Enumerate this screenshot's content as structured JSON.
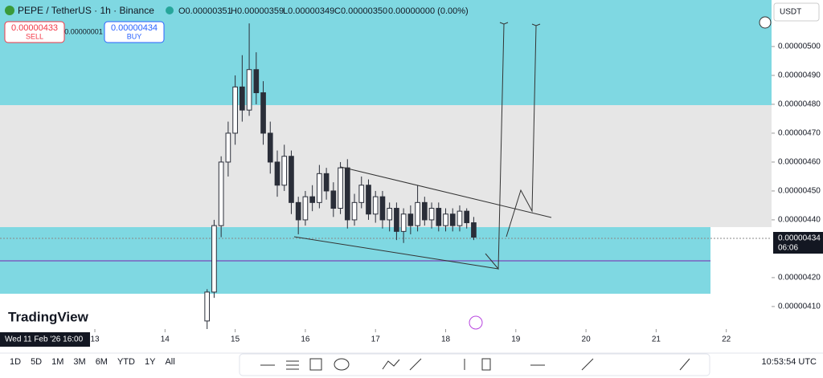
{
  "header": {
    "symbol": "PEPE / TetherUS · 1h · Binance",
    "open": "O0.00000351",
    "high": "H0.00000359",
    "low": "L0.00000349",
    "close": "C0.00000350",
    "change": "0.00000000 (0.00%)"
  },
  "trade": {
    "sell_price": "0.00000433",
    "sell_label": "SELL",
    "spread": "0.00000001",
    "buy_price": "0.00000434",
    "buy_label": "BUY"
  },
  "currency": "USDT",
  "logo": "TradingView",
  "timeframes": [
    "1D",
    "5D",
    "1M",
    "3M",
    "6M",
    "YTD",
    "1Y",
    "All"
  ],
  "clock": "10:53:54 UTC",
  "chart_data": {
    "type": "candlestick",
    "x": [
      14.6,
      14.7,
      14.8,
      14.9,
      15.0,
      15.1,
      15.2,
      15.3,
      15.4,
      15.5,
      15.6,
      15.7,
      15.8,
      15.9,
      16.0,
      16.1,
      16.2,
      16.3,
      16.4,
      16.5,
      16.6,
      16.7,
      16.8,
      16.9,
      17.0,
      17.1,
      17.2,
      17.3,
      17.4,
      17.5,
      17.6,
      17.7,
      17.8,
      17.9,
      18.0,
      18.1,
      18.2,
      18.3,
      18.4
    ],
    "open": [
      4.05e-06,
      4.15e-06,
      4.38e-06,
      4.6e-06,
      4.7e-06,
      4.86e-06,
      4.78e-06,
      4.92e-06,
      4.84e-06,
      4.7e-06,
      4.6e-06,
      4.52e-06,
      4.62e-06,
      4.46e-06,
      4.4e-06,
      4.48e-06,
      4.46e-06,
      4.56e-06,
      4.5e-06,
      4.44e-06,
      4.58e-06,
      4.4e-06,
      4.46e-06,
      4.52e-06,
      4.42e-06,
      4.48e-06,
      4.4e-06,
      4.44e-06,
      4.36e-06,
      4.42e-06,
      4.38e-06,
      4.46e-06,
      4.4e-06,
      4.44e-06,
      4.38e-06,
      4.42e-06,
      4.38e-06,
      4.43e-06,
      4.39e-06
    ],
    "high": [
      4.16e-06,
      4.4e-06,
      4.62e-06,
      4.74e-06,
      4.9e-06,
      4.97e-06,
      5.08e-06,
      4.98e-06,
      4.88e-06,
      4.74e-06,
      4.64e-06,
      4.66e-06,
      4.64e-06,
      4.48e-06,
      4.5e-06,
      4.52e-06,
      4.59e-06,
      4.58e-06,
      4.53e-06,
      4.6e-06,
      4.61e-06,
      4.49e-06,
      4.55e-06,
      4.54e-06,
      4.5e-06,
      4.5e-06,
      4.46e-06,
      4.46e-06,
      4.44e-06,
      4.45e-06,
      4.52e-06,
      4.48e-06,
      4.46e-06,
      4.46e-06,
      4.44e-06,
      4.44e-06,
      4.45e-06,
      4.44e-06,
      4.41e-06
    ],
    "low": [
      4.02e-06,
      4.13e-06,
      4.34e-06,
      4.55e-06,
      4.66e-06,
      4.74e-06,
      4.76e-06,
      4.8e-06,
      4.66e-06,
      4.56e-06,
      4.48e-06,
      4.5e-06,
      4.42e-06,
      4.35e-06,
      4.38e-06,
      4.43e-06,
      4.44e-06,
      4.47e-06,
      4.41e-06,
      4.42e-06,
      4.37e-06,
      4.38e-06,
      4.44e-06,
      4.4e-06,
      4.39e-06,
      4.37e-06,
      4.36e-06,
      4.33e-06,
      4.32e-06,
      4.35e-06,
      4.36e-06,
      4.38e-06,
      4.37e-06,
      4.36e-06,
      4.36e-06,
      4.36e-06,
      4.36e-06,
      4.37e-06,
      4.33e-06
    ],
    "close": [
      4.15e-06,
      4.38e-06,
      4.6e-06,
      4.7e-06,
      4.86e-06,
      4.78e-06,
      4.92e-06,
      4.84e-06,
      4.7e-06,
      4.6e-06,
      4.52e-06,
      4.62e-06,
      4.46e-06,
      4.4e-06,
      4.48e-06,
      4.46e-06,
      4.56e-06,
      4.5e-06,
      4.44e-06,
      4.58e-06,
      4.4e-06,
      4.46e-06,
      4.52e-06,
      4.42e-06,
      4.48e-06,
      4.4e-06,
      4.44e-06,
      4.36e-06,
      4.42e-06,
      4.38e-06,
      4.46e-06,
      4.4e-06,
      4.44e-06,
      4.38e-06,
      4.42e-06,
      4.38e-06,
      4.43e-06,
      4.39e-06,
      4.34e-06
    ],
    "up_color": "#ffffff",
    "down_color": "#2a2e39",
    "xlim": [
      11.648,
      22.645
    ],
    "xticks": [
      13,
      14,
      15,
      16,
      17,
      18,
      19,
      20,
      21,
      22
    ],
    "ylim": [
      4.022e-06,
      5.161e-06
    ],
    "yticks": [
      {
        "value": 5e-06,
        "label": "0.00000500"
      },
      {
        "value": 4.9e-06,
        "label": "0.00000490"
      },
      {
        "value": 4.8e-06,
        "label": "0.00000480"
      },
      {
        "value": 4.7e-06,
        "label": "0.00000470"
      },
      {
        "value": 4.6e-06,
        "label": "0.00000460"
      },
      {
        "value": 4.5e-06,
        "label": "0.00000450"
      },
      {
        "value": 4.4e-06,
        "label": "0.00000440"
      },
      {
        "value": 4.2e-06,
        "label": "0.00000420"
      },
      {
        "value": 4.1e-06,
        "label": "0.00000410"
      }
    ],
    "last_price": {
      "value": 4.34e-06,
      "label": "0.00000434"
    },
    "countdown": "06:06",
    "crosshair_date": "Wed 11 Feb '26  16:00"
  }
}
